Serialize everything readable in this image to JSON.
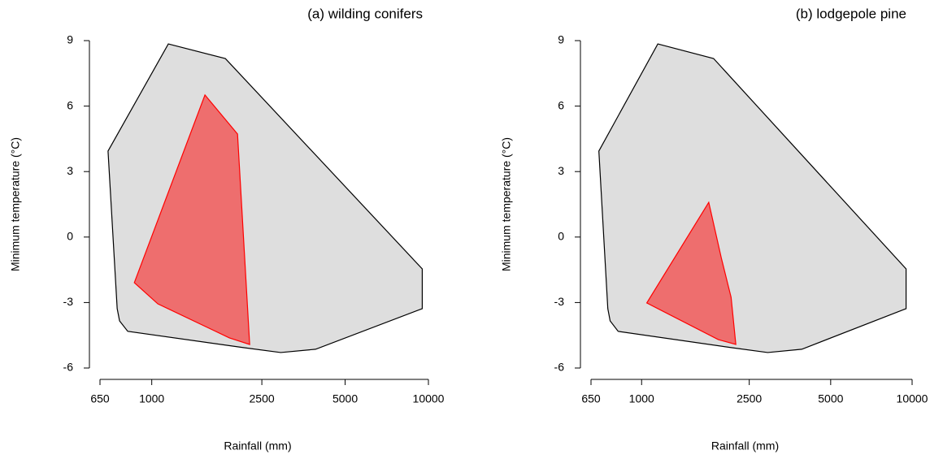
{
  "chart_data": [
    {
      "type": "polygon",
      "title": "(a) wilding conifers",
      "xlabel": "Rainfall (mm)",
      "ylabel": "Minimum temperature (°C)",
      "xscale": "log",
      "xlim": [
        650,
        10000
      ],
      "ylim": [
        -6,
        9
      ],
      "xticks": [
        650,
        1000,
        2500,
        5000,
        10000
      ],
      "yticks": [
        -6,
        -3,
        0,
        3,
        6,
        9
      ],
      "series": [
        {
          "color": "#dedede",
          "edgecolor": "#000000",
          "x": [
            1148,
            1845,
            9500,
            9500,
            3910,
            2925,
            2158,
            819,
            765,
            750,
            695
          ],
          "values": [
            8.85,
            8.18,
            -1.46,
            -3.28,
            -5.14,
            -5.29,
            -5.07,
            -4.32,
            -3.84,
            -3.28,
            3.94
          ]
        },
        {
          "color": "#ee6e6e",
          "edgecolor": "#ff0000",
          "x": [
            1557,
            2042,
            2259,
            1908,
            1052,
            865
          ],
          "values": [
            6.51,
            4.72,
            -4.92,
            -4.62,
            -3.06,
            -2.09
          ]
        }
      ]
    },
    {
      "type": "polygon",
      "title": "(b) lodgepole pine",
      "xlabel": "Rainfall (mm)",
      "ylabel": "Minimum temperature (°C)",
      "xscale": "log",
      "xlim": [
        650,
        10000
      ],
      "ylim": [
        -6,
        9
      ],
      "xticks": [
        650,
        1000,
        2500,
        5000,
        10000
      ],
      "yticks": [
        -6,
        -3,
        0,
        3,
        6,
        9
      ],
      "series": [
        {
          "color": "#dedede",
          "edgecolor": "#000000",
          "x": [
            1148,
            1845,
            9500,
            9500,
            3910,
            2925,
            2158,
            819,
            765,
            750,
            695
          ],
          "values": [
            8.85,
            8.18,
            -1.46,
            -3.28,
            -5.14,
            -5.29,
            -5.07,
            -4.32,
            -3.84,
            -3.28,
            3.94
          ]
        },
        {
          "color": "#ee6e6e",
          "edgecolor": "#ff0000",
          "x": [
            1771,
            1972,
            2142,
            2230,
            1922,
            1045
          ],
          "values": [
            1.59,
            -0.97,
            -2.76,
            -4.92,
            -4.7,
            -3.02
          ]
        }
      ]
    }
  ]
}
